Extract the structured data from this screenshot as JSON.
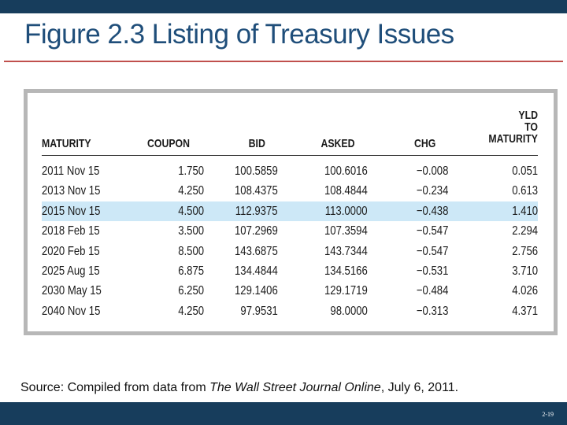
{
  "slide": {
    "title": "Figure 2.3 Listing of Treasury Issues",
    "source_prefix": "Source: Compiled from data from ",
    "source_publication": "The Wall Street Journal Online",
    "source_suffix": ", July 6, 2011.",
    "page_number": "2-19"
  },
  "table": {
    "headers": {
      "maturity": "MATURITY",
      "coupon": "COUPON",
      "bid": "BID",
      "asked": "ASKED",
      "chg": "CHG",
      "yld_line1": "YLD",
      "yld_line2": "TO",
      "yld_line3": "MATURITY"
    },
    "highlighted_row": "2015 Nov 15",
    "rows": [
      {
        "maturity": "2011 Nov 15",
        "coupon": "1.750",
        "bid": "100.5859",
        "asked": "100.6016",
        "chg": "−0.008",
        "yld": "0.051"
      },
      {
        "maturity": "2013 Nov 15",
        "coupon": "4.250",
        "bid": "108.4375",
        "asked": "108.4844",
        "chg": "−0.234",
        "yld": "0.613"
      },
      {
        "maturity": "2015 Nov 15",
        "coupon": "4.500",
        "bid": "112.9375",
        "asked": "113.0000",
        "chg": "−0.438",
        "yld": "1.410"
      },
      {
        "maturity": "2018 Feb 15",
        "coupon": "3.500",
        "bid": "107.2969",
        "asked": "107.3594",
        "chg": "−0.547",
        "yld": "2.294"
      },
      {
        "maturity": "2020 Feb 15",
        "coupon": "8.500",
        "bid": "143.6875",
        "asked": "143.7344",
        "chg": "−0.547",
        "yld": "2.756"
      },
      {
        "maturity": "2025 Aug 15",
        "coupon": "6.875",
        "bid": "134.4844",
        "asked": "134.5166",
        "chg": "−0.531",
        "yld": "3.710"
      },
      {
        "maturity": "2030 May 15",
        "coupon": "6.250",
        "bid": "129.1406",
        "asked": "129.1719",
        "chg": "−0.484",
        "yld": "4.026"
      },
      {
        "maturity": "2040 Nov 15",
        "coupon": "4.250",
        "bid": "97.9531",
        "asked": "98.0000",
        "chg": "−0.313",
        "yld": "4.371"
      }
    ]
  }
}
